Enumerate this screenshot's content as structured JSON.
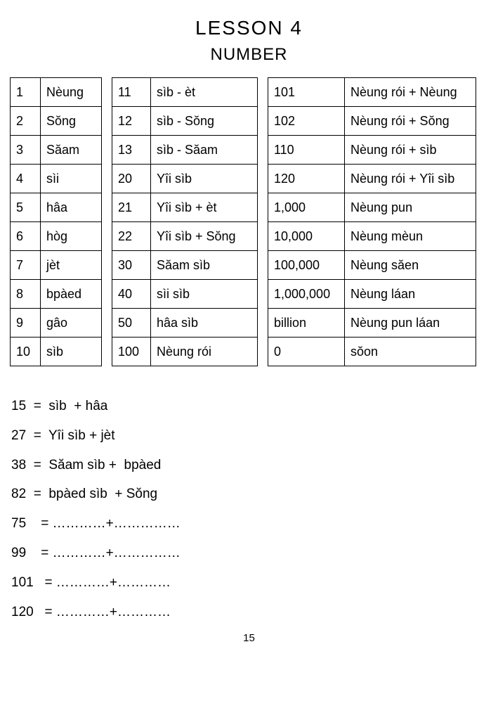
{
  "title": "LESSON 4",
  "subtitle": "NUMBER",
  "page_number": "15",
  "table1": {
    "rows": [
      [
        "1",
        "Nèung"
      ],
      [
        "2",
        "Sŏng"
      ],
      [
        "3",
        "Săam"
      ],
      [
        "4",
        "sìi"
      ],
      [
        "5",
        "hâa"
      ],
      [
        "6",
        "hòg"
      ],
      [
        "7",
        "jèt"
      ],
      [
        "8",
        "bpàed"
      ],
      [
        "9",
        "gâo"
      ],
      [
        "10",
        "sìb"
      ]
    ]
  },
  "table2": {
    "rows": [
      [
        "11",
        "sìb - èt"
      ],
      [
        "12",
        "sìb - Sŏng"
      ],
      [
        "13",
        "sìb - Săam"
      ],
      [
        "20",
        "Yîi sìb"
      ],
      [
        "21",
        "Yîi sìb + èt"
      ],
      [
        "22",
        "Yîi sìb + Sŏng"
      ],
      [
        "30",
        "Săam sìb"
      ],
      [
        "40",
        "sìi sìb"
      ],
      [
        "50",
        "hâa sìb"
      ],
      [
        "100",
        "Nèung rói"
      ]
    ]
  },
  "table3": {
    "rows": [
      [
        "101",
        "Nèung rói + Nèung"
      ],
      [
        "102",
        "Nèung rói + Sŏng"
      ],
      [
        "110",
        "Nèung rói + sìb"
      ],
      [
        "120",
        "Nèung rói + Yîi sìb"
      ],
      [
        "1,000",
        "Nèung pun"
      ],
      [
        "10,000",
        "Nèung mèun"
      ],
      [
        "100,000",
        "Nèung săen"
      ],
      [
        "1,000,000",
        "Nèung láan"
      ],
      [
        "billion",
        "Nèung pun láan"
      ],
      [
        "0",
        "sŏon"
      ]
    ]
  },
  "examples": [
    "15  =  sìb  + hâa",
    "27  =  Yîi sìb + jèt",
    "38  =  Săam sìb +  bpàed",
    "82  =  bpàed sìb  + Sŏng",
    "75    = …………+……………",
    "99    = …………+……………",
    "101   = …………+…………",
    "120   = …………+…………"
  ]
}
